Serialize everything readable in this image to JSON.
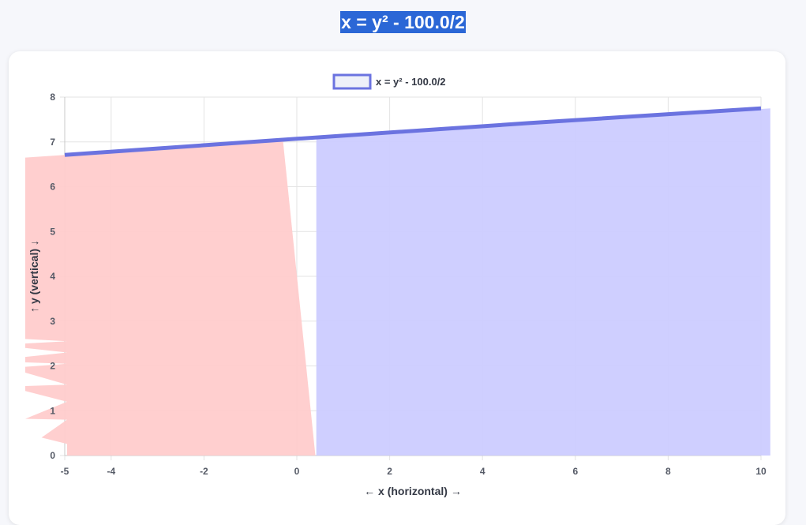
{
  "page": {
    "title": "x = y² - 100.0/2"
  },
  "chart_data": {
    "type": "line",
    "title": "",
    "legend": {
      "position": "top-center",
      "entries": [
        "x = y² - 100.0/2"
      ]
    },
    "xlabel": "← x (horizontal) →",
    "ylabel": "↑ y (vertical) ↓",
    "xlim": [
      -5,
      10
    ],
    "ylim": [
      0,
      8
    ],
    "x_ticks": [
      -5,
      -4,
      -2,
      0,
      2,
      4,
      6,
      8,
      10
    ],
    "y_ticks": [
      0,
      1,
      2,
      3,
      4,
      5,
      6,
      7,
      8
    ],
    "grid": true,
    "series": [
      {
        "name": "x = y² - 100.0/2",
        "color": "#6b73e0",
        "x": [
          -5,
          0,
          5,
          10
        ],
        "y": [
          6.71,
          7.07,
          7.42,
          7.75
        ]
      }
    ],
    "fill_regions": [
      {
        "color": "#ffcccc",
        "boundary": [
          [
            -5.85,
            6.65
          ],
          [
            -5.0,
            6.71
          ],
          [
            -0.3,
            7.04
          ],
          [
            0.4,
            0.0
          ],
          [
            -4.95,
            0.0
          ],
          [
            -4.95,
            0.26
          ],
          [
            -5.5,
            0.4
          ],
          [
            -4.95,
            0.8
          ],
          [
            -5.85,
            0.82
          ],
          [
            -4.95,
            1.2
          ],
          [
            -5.85,
            1.44
          ],
          [
            -5.85,
            1.55
          ],
          [
            -4.95,
            1.58
          ],
          [
            -5.85,
            1.85
          ],
          [
            -5.85,
            1.98
          ],
          [
            -4.95,
            2.05
          ],
          [
            -5.85,
            2.08
          ],
          [
            -5.85,
            2.2
          ],
          [
            -4.95,
            2.3
          ],
          [
            -5.85,
            2.4
          ],
          [
            -5.85,
            2.5
          ],
          [
            -4.95,
            2.55
          ],
          [
            -5.85,
            2.6
          ]
        ]
      },
      {
        "color": "#ccccff",
        "boundary": [
          [
            0.42,
            0.0
          ],
          [
            0.42,
            7.07
          ],
          [
            10.2,
            7.75
          ],
          [
            10.2,
            0.0
          ]
        ]
      }
    ]
  }
}
